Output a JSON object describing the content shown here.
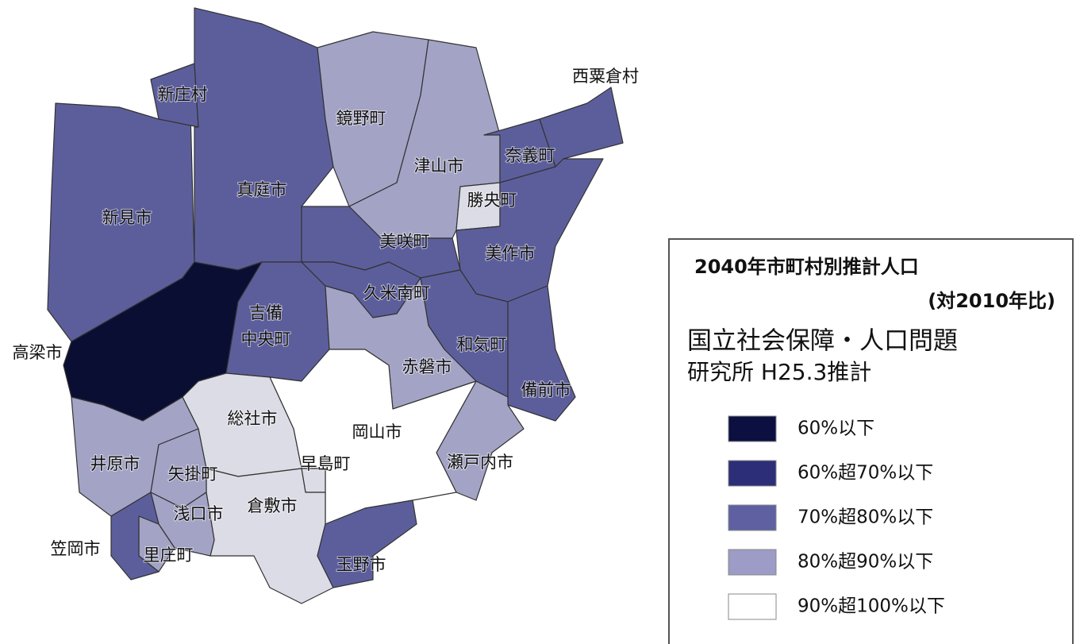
{
  "map": {
    "regions": [
      {
        "name": "新見市",
        "color": "#5c5e9c"
      },
      {
        "name": "新庄村",
        "color": "#5c5e9c"
      },
      {
        "name": "真庭市",
        "color": "#5c5e9c"
      },
      {
        "name": "高梁市",
        "color": "#0b0e33"
      },
      {
        "name": [
          "吉備",
          "中央町"
        ],
        "color": "#5c5e9c"
      },
      {
        "name": "鏡野町",
        "color": "#a3a3c6"
      },
      {
        "name": "津山市",
        "color": "#a3a3c6"
      },
      {
        "name": "勝央町",
        "color": "#dcdce6"
      },
      {
        "name": "奈義町",
        "color": "#5c5e9c"
      },
      {
        "name": "西粟倉村",
        "color": "#5c5e9c"
      },
      {
        "name": "美作市",
        "color": "#5c5e9c"
      },
      {
        "name": "美咲町",
        "color": "#5c5e9c"
      },
      {
        "name": "久米南町",
        "color": "#5c5e9c"
      },
      {
        "name": "和気町",
        "color": "#5c5e9c"
      },
      {
        "name": "赤磐市",
        "color": "#a3a3c6"
      },
      {
        "name": "備前市",
        "color": "#5c5e9c"
      },
      {
        "name": "瀬戸内市",
        "color": "#a3a3c6"
      },
      {
        "name": "岡山市",
        "color": "#ffffff"
      },
      {
        "name": "総社市",
        "color": "#dcdce6"
      },
      {
        "name": "早島町",
        "color": "#dcdce6"
      },
      {
        "name": "倉敷市",
        "color": "#dcdce6"
      },
      {
        "name": "玉野市",
        "color": "#5c5e9c"
      },
      {
        "name": "井原市",
        "color": "#a3a3c6"
      },
      {
        "name": "矢掛町",
        "color": "#a3a3c6"
      },
      {
        "name": "浅口市",
        "color": "#a3a3c6"
      },
      {
        "name": "里庄町",
        "color": "#a3a3c6"
      },
      {
        "name": "笠岡市",
        "color": "#5c5e9c"
      }
    ],
    "legend": {
      "title": "2040年市町村別推計人口",
      "subtitle": "(対2010年比)",
      "source": [
        "国立社会保障・人口問題",
        "研究所 H25.3推計"
      ],
      "items": [
        {
          "label": "60%以下",
          "color": "#0b1040"
        },
        {
          "label": "60%超70%以下",
          "color": "#2c2e78"
        },
        {
          "label": "70%超80%以下",
          "color": "#5e60a2"
        },
        {
          "label": "80%超90%以下",
          "color": "#9c9cc6"
        },
        {
          "label": "90%超100%以下",
          "color": "#ffffff"
        }
      ]
    }
  }
}
